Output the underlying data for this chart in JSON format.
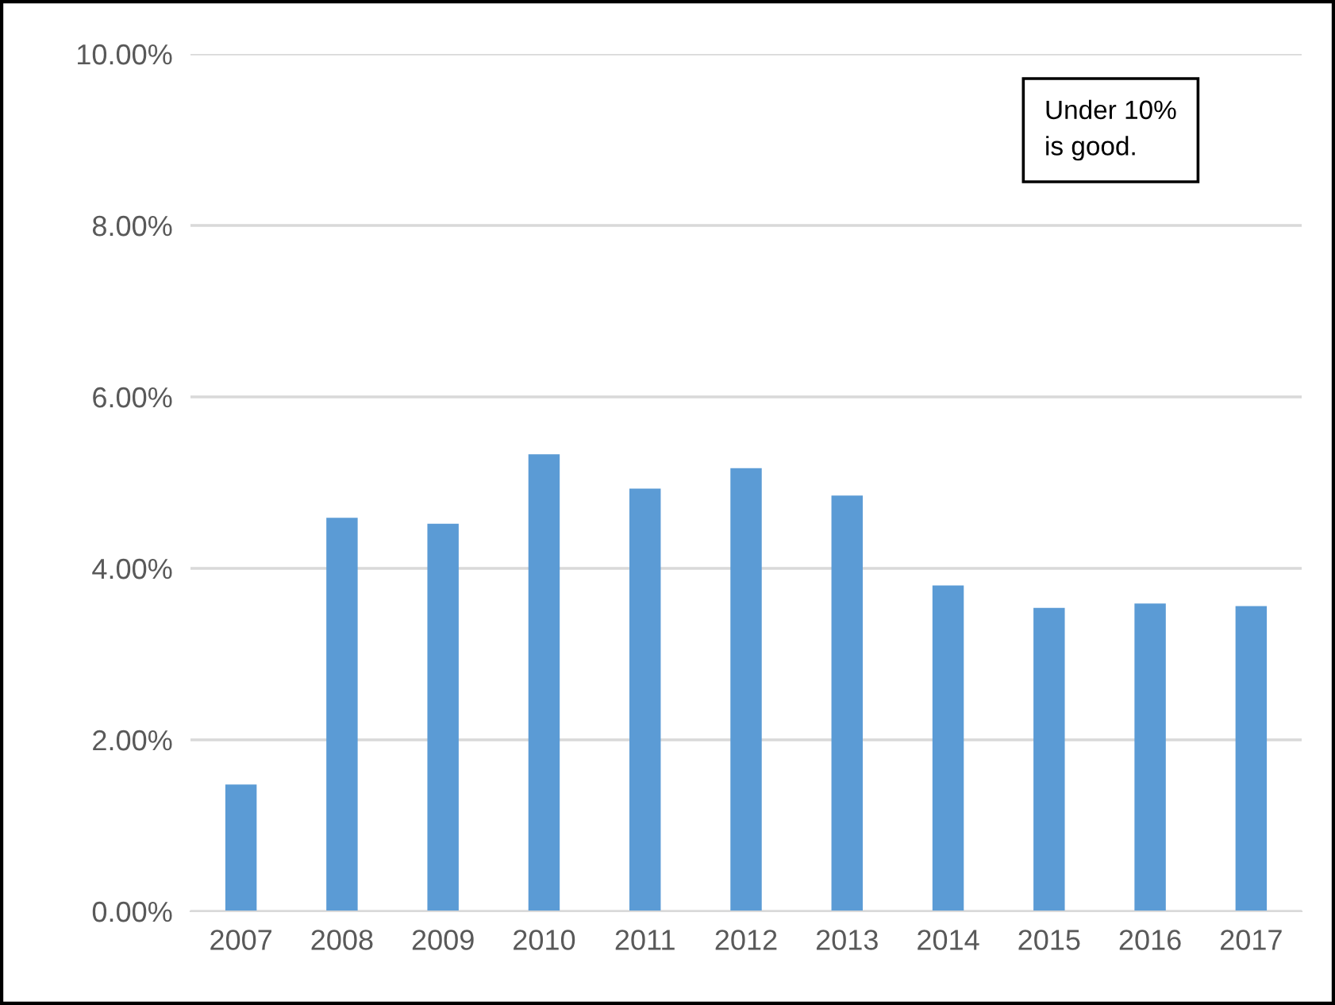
{
  "chart_data": {
    "type": "bar",
    "categories": [
      "2007",
      "2008",
      "2009",
      "2010",
      "2011",
      "2012",
      "2013",
      "2014",
      "2015",
      "2016",
      "2017"
    ],
    "values": [
      1.48,
      4.59,
      4.52,
      5.33,
      4.93,
      5.17,
      4.85,
      3.8,
      3.54,
      3.59,
      3.56
    ],
    "color": "#5b9bd5",
    "ylim": [
      0,
      10
    ],
    "yticks": [
      {
        "value": 0,
        "label": "0.00%"
      },
      {
        "value": 2,
        "label": "2.00%"
      },
      {
        "value": 4,
        "label": "4.00%"
      },
      {
        "value": 6,
        "label": "6.00%"
      },
      {
        "value": 8,
        "label": "8.00%"
      },
      {
        "value": 10,
        "label": "10.00%"
      }
    ],
    "grid": "y",
    "annotations": [
      "Under 10%\nis good."
    ]
  }
}
